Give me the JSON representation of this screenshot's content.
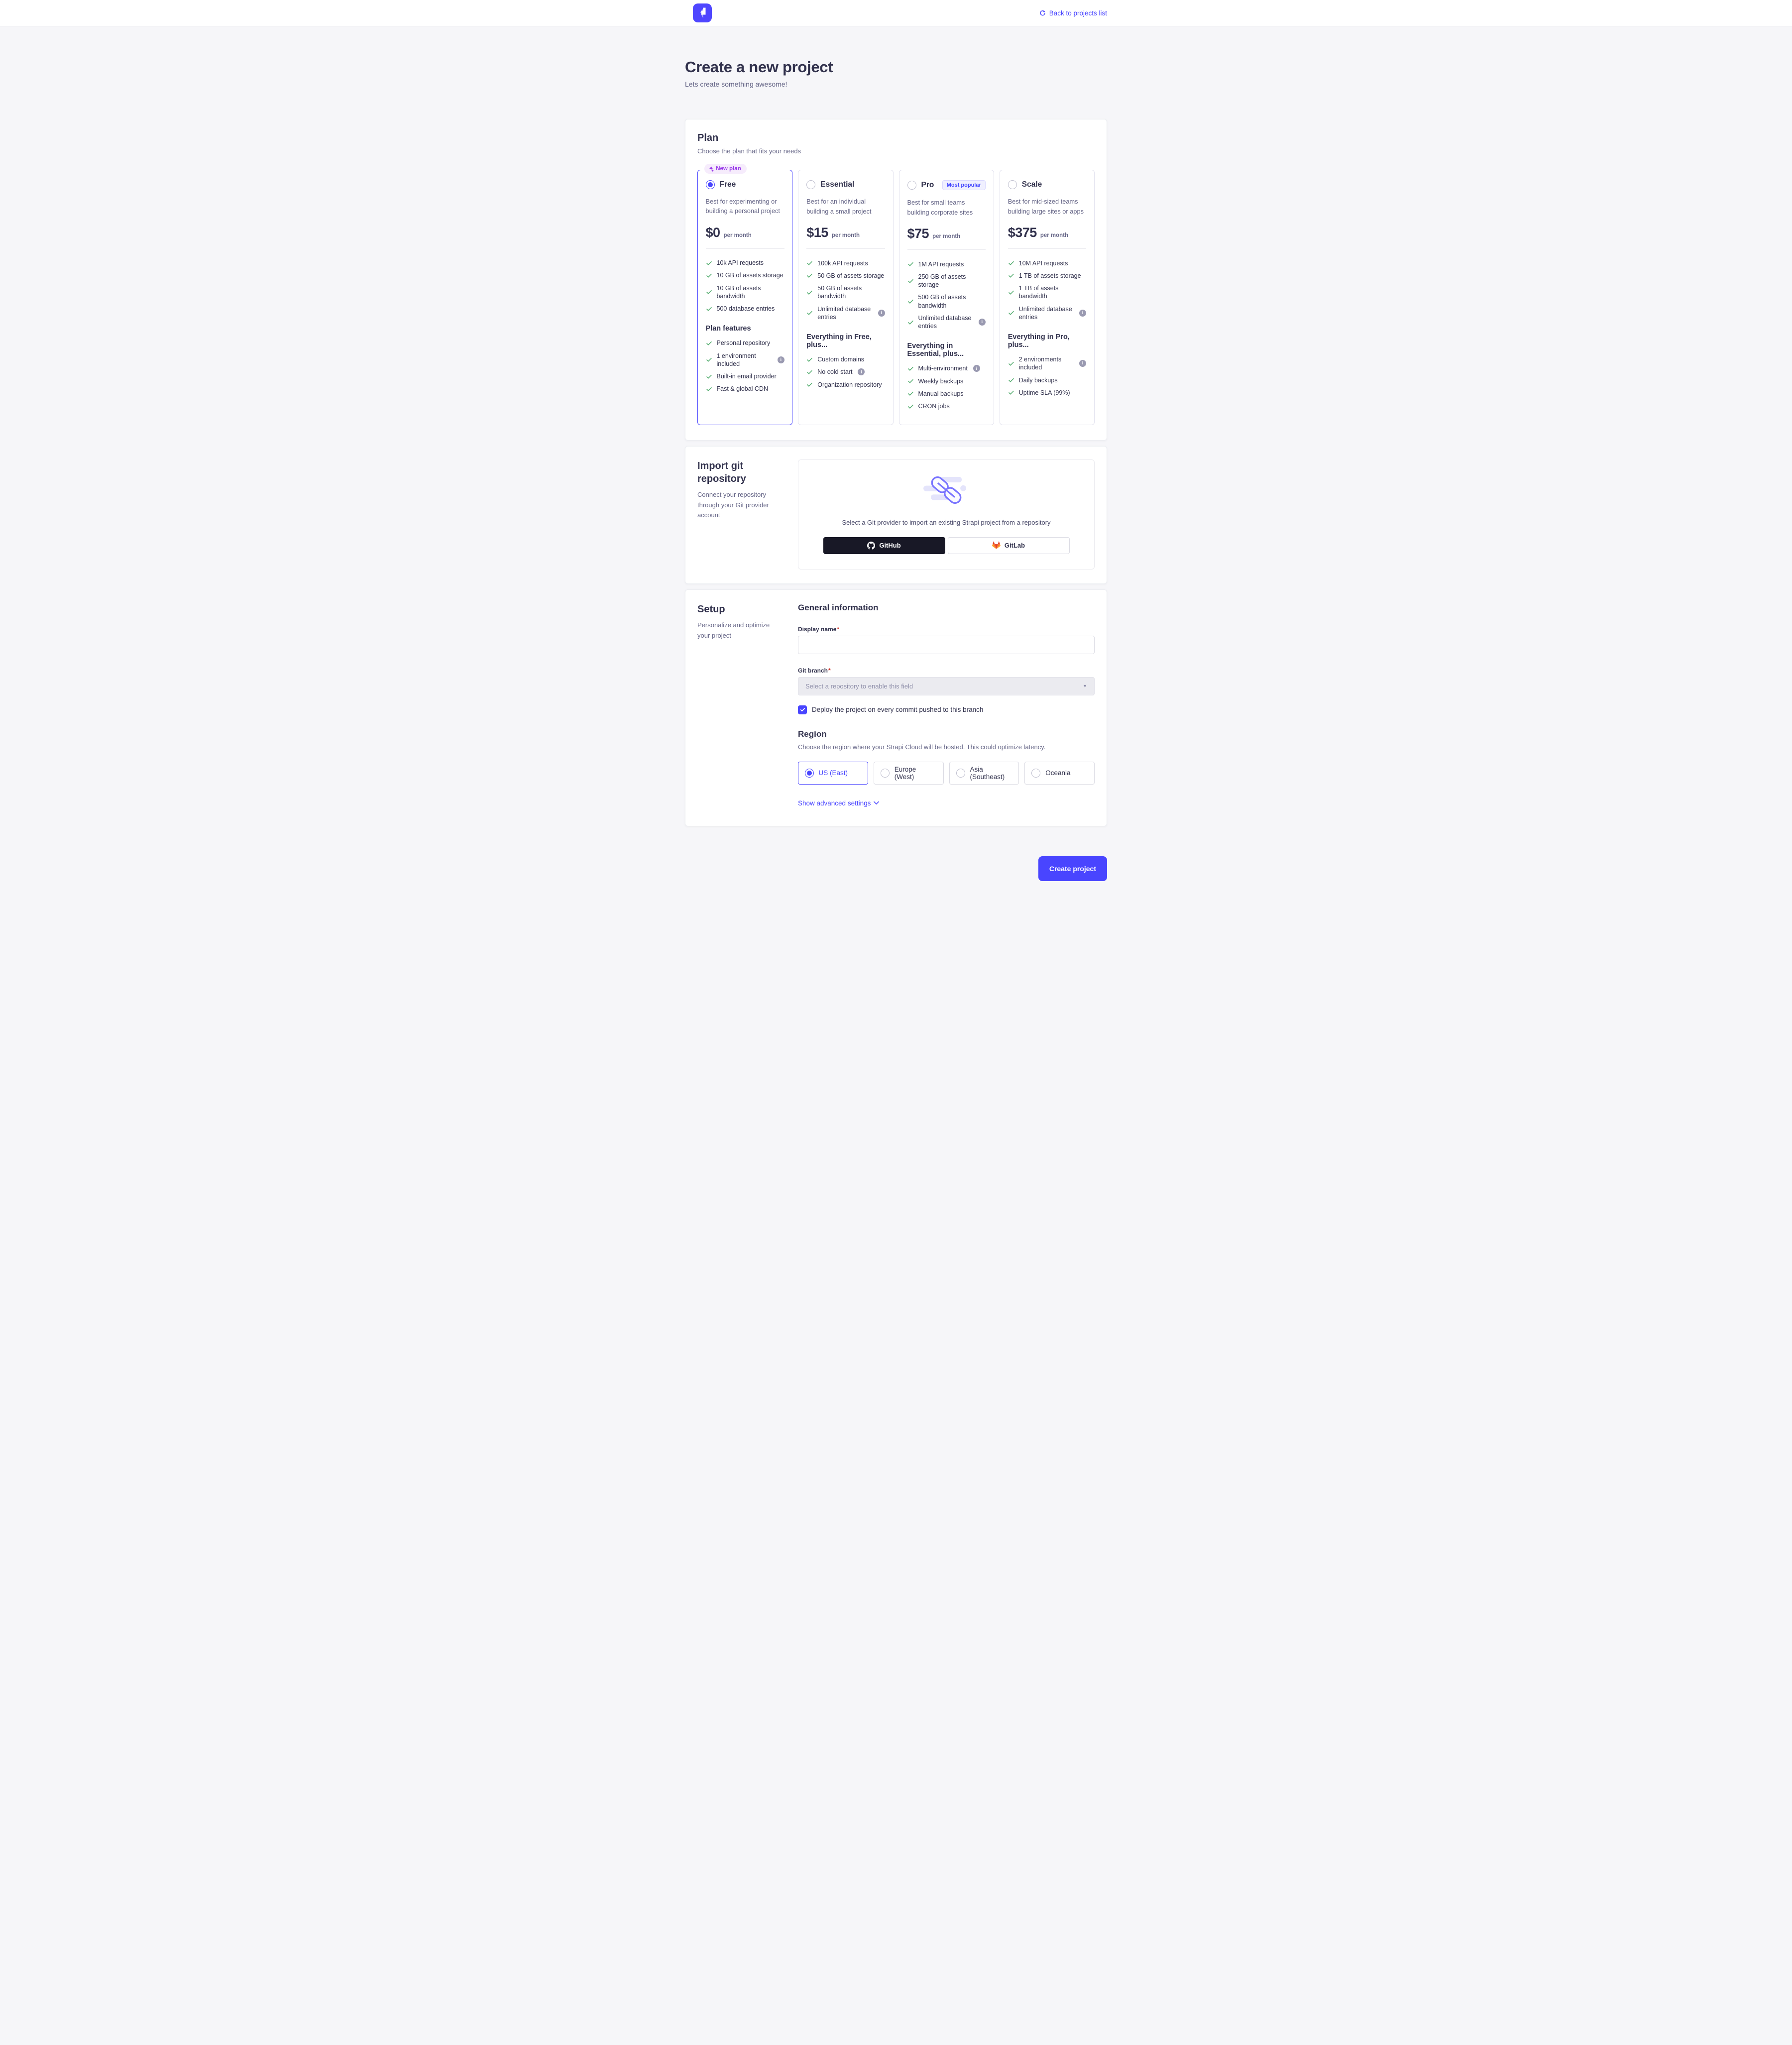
{
  "colors": {
    "accent": "#4945ff",
    "success_check": "#5cb176",
    "title_text": "#32324d",
    "muted_text": "#666687",
    "github_button_bg": "#181826",
    "new_plan_badge_bg": "#f6ecfc",
    "new_plan_badge_text": "#9736e8",
    "page_bg": "#f6f6f9"
  },
  "header": {
    "back_label": "Back to projects list"
  },
  "page_head": {
    "title": "Create a new project",
    "subtitle": "Lets create something awesome!"
  },
  "plan_section": {
    "title": "Plan",
    "subtitle": "Choose the plan that fits your needs",
    "plans": [
      {
        "name": "Free",
        "selected": true,
        "corner_badge": "New plan",
        "description": "Best for experimenting or building a personal project",
        "price": "$0",
        "period": "per month",
        "features": [
          {
            "label": "10k API requests"
          },
          {
            "label": "10 GB of assets storage"
          },
          {
            "label": "10 GB of assets bandwidth"
          },
          {
            "label": "500 database entries"
          }
        ],
        "extra_title": "Plan features",
        "extra_features": [
          {
            "label": "Personal repository"
          },
          {
            "label": "1 environment included",
            "info": true
          },
          {
            "label": "Built-in email provider"
          },
          {
            "label": "Fast & global CDN"
          }
        ]
      },
      {
        "name": "Essential",
        "selected": false,
        "description": "Best for an individual building a small project",
        "price": "$15",
        "period": "per month",
        "features": [
          {
            "label": "100k API requests"
          },
          {
            "label": "50 GB of assets storage"
          },
          {
            "label": "50 GB of assets bandwidth"
          },
          {
            "label": "Unlimited database entries",
            "info": true
          }
        ],
        "extra_title": "Everything in Free, plus...",
        "extra_features": [
          {
            "label": "Custom domains"
          },
          {
            "label": "No cold start",
            "info": true
          },
          {
            "label": "Organization repository"
          }
        ]
      },
      {
        "name": "Pro",
        "selected": false,
        "badge": "Most popular",
        "description": "Best for small teams building corporate sites",
        "price": "$75",
        "period": "per month",
        "features": [
          {
            "label": "1M API requests"
          },
          {
            "label": "250 GB of assets storage"
          },
          {
            "label": "500 GB of assets bandwidth"
          },
          {
            "label": "Unlimited database entries",
            "info": true
          }
        ],
        "extra_title": "Everything in Essential, plus...",
        "extra_features": [
          {
            "label": "Multi-environment",
            "info": true
          },
          {
            "label": "Weekly backups"
          },
          {
            "label": "Manual backups"
          },
          {
            "label": "CRON jobs"
          }
        ]
      },
      {
        "name": "Scale",
        "selected": false,
        "description": "Best for mid-sized teams building large sites or apps",
        "price": "$375",
        "period": "per month",
        "features": [
          {
            "label": "10M API requests"
          },
          {
            "label": "1 TB of assets storage"
          },
          {
            "label": "1 TB of assets bandwidth"
          },
          {
            "label": "Unlimited database entries",
            "info": true
          }
        ],
        "extra_title": "Everything in Pro, plus...",
        "extra_features": [
          {
            "label": "2 environments included",
            "info": true
          },
          {
            "label": "Daily backups"
          },
          {
            "label": "Uptime SLA (99%)"
          }
        ]
      }
    ]
  },
  "import_section": {
    "title": "Import git repository",
    "subtitle": "Connect your repository through your Git provider account",
    "helper": "Select a Git provider to import an existing Strapi project from a repository",
    "providers": [
      {
        "label": "GitHub"
      },
      {
        "label": "GitLab"
      }
    ]
  },
  "setup_section": {
    "title": "Setup",
    "subtitle": "Personalize and optimize your project",
    "general_title": "General information",
    "display_name": {
      "label": "Display name",
      "required": true,
      "value": ""
    },
    "git_branch": {
      "label": "Git branch",
      "required": true,
      "placeholder": "Select a repository to enable this field",
      "disabled": true
    },
    "deploy_checkbox": {
      "label": "Deploy the project on every commit pushed to this branch",
      "checked": true
    },
    "region": {
      "title": "Region",
      "subtitle": "Choose the region where your Strapi Cloud will be hosted. This could optimize latency.",
      "options": [
        {
          "label": "US (East)",
          "selected": true
        },
        {
          "label": "Europe (West)",
          "selected": false
        },
        {
          "label": "Asia (Southeast)",
          "selected": false
        },
        {
          "label": "Oceania",
          "selected": false
        }
      ]
    },
    "advanced_link": "Show advanced settings"
  },
  "footer": {
    "create_button": "Create project"
  }
}
